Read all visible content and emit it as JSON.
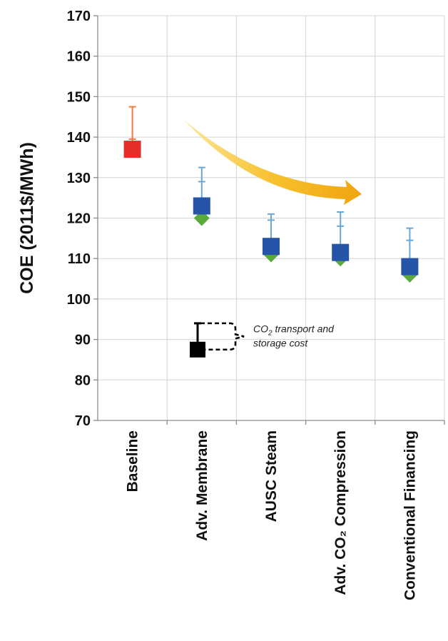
{
  "chart_data": {
    "type": "scatter",
    "ylabel": "COE (2011$/MWh)",
    "ylim": [
      70,
      170
    ],
    "yticks": [
      70,
      80,
      90,
      100,
      110,
      120,
      130,
      140,
      150,
      160,
      170
    ],
    "categories": [
      "Baseline",
      "Adv. Membrane",
      "AUSC Steam",
      "Adv. CO₂ Compression",
      "Conventional Financing"
    ],
    "series": [
      {
        "values": [
          137,
          123,
          113,
          111.5,
          108
        ],
        "color": "#2554a8",
        "marker": "square"
      },
      {
        "values": [
          null,
          120,
          111,
          110,
          106
        ],
        "color": "#5aab3c",
        "marker": "diamond"
      }
    ],
    "error_bars": [
      {
        "low": 137,
        "high": 147.5,
        "mid": 139.5
      },
      {
        "low": 123,
        "high": 132.5,
        "mid": 129
      },
      {
        "low": 113,
        "high": 121,
        "mid": 119.5
      },
      {
        "low": 111.5,
        "high": 121.5,
        "mid": 118
      },
      {
        "low": 108,
        "high": 117.5,
        "mid": 114.5
      }
    ],
    "baseline_color": "#e52d27",
    "errorbar_color_baseline": "#f07a3a",
    "errorbar_color": "#6aa6d6",
    "arrow_color": "#f5b41c",
    "legend_note": {
      "text_line1_pre": "CO",
      "text_line1_sub": "2",
      "text_line1_post": " transport and",
      "text_line2": "storage cost",
      "marker_value": 87.5,
      "top_value": 94
    }
  }
}
